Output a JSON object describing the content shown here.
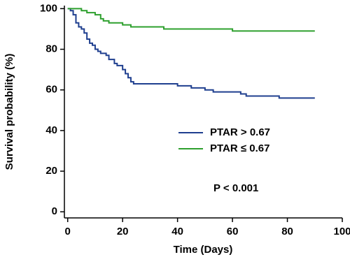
{
  "chart_data": {
    "type": "step",
    "xlabel": "Time (Days)",
    "ylabel": "Survival probability (%)",
    "annotation": "P < 0.001",
    "xlim": [
      -1.2,
      100
    ],
    "xticks": [
      0,
      20,
      40,
      60,
      80,
      100
    ],
    "ylim": [
      -3,
      101.5
    ],
    "yticks": [
      0,
      20,
      40,
      60,
      80,
      100
    ],
    "series": [
      {
        "name": "PTAR > 0.67",
        "color": "#1f3f8f",
        "x": [
          0,
          1,
          2,
          3,
          4,
          5,
          6,
          7,
          8,
          9,
          10,
          11,
          12,
          14,
          15,
          17,
          18,
          20,
          21,
          22,
          23,
          24,
          35,
          40,
          45,
          50,
          53,
          60,
          63,
          65,
          70,
          77,
          90
        ],
        "values": [
          100,
          99,
          97,
          93,
          91,
          90,
          88,
          85,
          83,
          82,
          80,
          79,
          78,
          77,
          75,
          73,
          72,
          70,
          68,
          66,
          64,
          63,
          63,
          62,
          61,
          60,
          59,
          59,
          58,
          57,
          57,
          56,
          56
        ]
      },
      {
        "name": "PTAR ≤ 0.67",
        "color": "#2ea02e",
        "x": [
          0,
          5,
          7,
          10,
          12,
          13,
          15,
          20,
          23,
          30,
          35,
          50,
          60,
          90
        ],
        "values": [
          100,
          99,
          98,
          97,
          95,
          94,
          93,
          92,
          91,
          91,
          90,
          90,
          89,
          89
        ]
      }
    ]
  }
}
